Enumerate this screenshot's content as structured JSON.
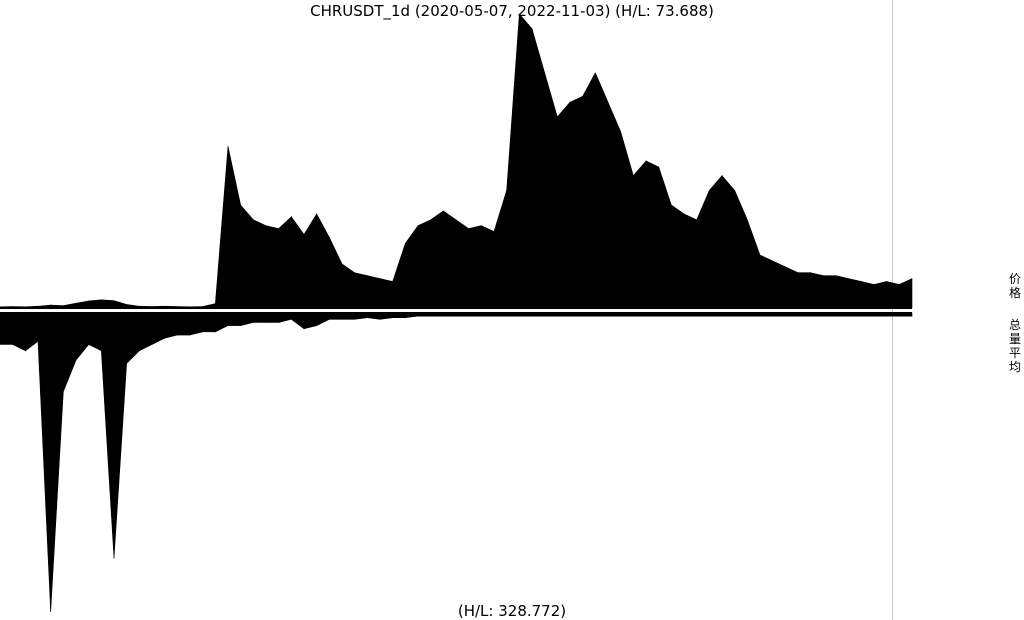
{
  "chart_data": {
    "type": "area",
    "title": "CHRUSDT_1d (2020-05-07, 2022-11-03) (H/L: 73.688)",
    "footer": "(H/L: 328.772)",
    "start_date": "2020-05-07",
    "end_date": "2022-11-03",
    "series": [
      {
        "name": "价格",
        "values": [
          0.4,
          0.5,
          0.4,
          0.6,
          1.0,
          0.8,
          1.6,
          2.4,
          2.8,
          2.5,
          1.2,
          0.6,
          0.5,
          0.6,
          0.5,
          0.4,
          0.5,
          1.5,
          55.0,
          35.0,
          30.0,
          28.0,
          27.0,
          31.0,
          25.0,
          32.0,
          24.0,
          15.0,
          12.0,
          11.0,
          10.0,
          9.0,
          22.0,
          28.0,
          30.0,
          33.0,
          30.0,
          27.0,
          28.0,
          26.0,
          40.0,
          100.0,
          95.0,
          80.0,
          65.0,
          70.0,
          72.0,
          80.0,
          70.0,
          60.0,
          45.0,
          50.0,
          48.0,
          35.0,
          32.0,
          30.0,
          40.0,
          45.0,
          40.0,
          30.0,
          18.0,
          16.0,
          14.0,
          12.0,
          12.0,
          11.0,
          11.0,
          10.0,
          9.0,
          8.0,
          9.0,
          8.0,
          10.0
        ]
      },
      {
        "name": "总量平均",
        "values": [
          10.0,
          10.0,
          12.0,
          9.0,
          95.0,
          25.0,
          15.0,
          10.0,
          12.0,
          78.0,
          16.0,
          12.0,
          10.0,
          8.0,
          7.0,
          7.0,
          6.0,
          6.0,
          4.0,
          4.0,
          3.0,
          3.0,
          3.0,
          2.0,
          5.0,
          4.0,
          2.0,
          2.0,
          2.0,
          1.5,
          2.0,
          1.5,
          1.5,
          1.0,
          1.0,
          1.0,
          1.0,
          1.0,
          1.0,
          1.0,
          1.0,
          1.0,
          1.0,
          1.0,
          1.0,
          1.0,
          1.0,
          1.0,
          1.0,
          1.0,
          1.0,
          1.0,
          1.0,
          1.0,
          1.0,
          1.0,
          1.0,
          1.0,
          1.0,
          1.0,
          1.0,
          1.0,
          1.0,
          1.0,
          1.0,
          1.0,
          1.0,
          1.0,
          1.0,
          1.0,
          1.0,
          1.0,
          1.0
        ]
      }
    ],
    "colors": {
      "fill": "#000000",
      "gridline": "#cccccc",
      "background": "#ffffff"
    }
  }
}
